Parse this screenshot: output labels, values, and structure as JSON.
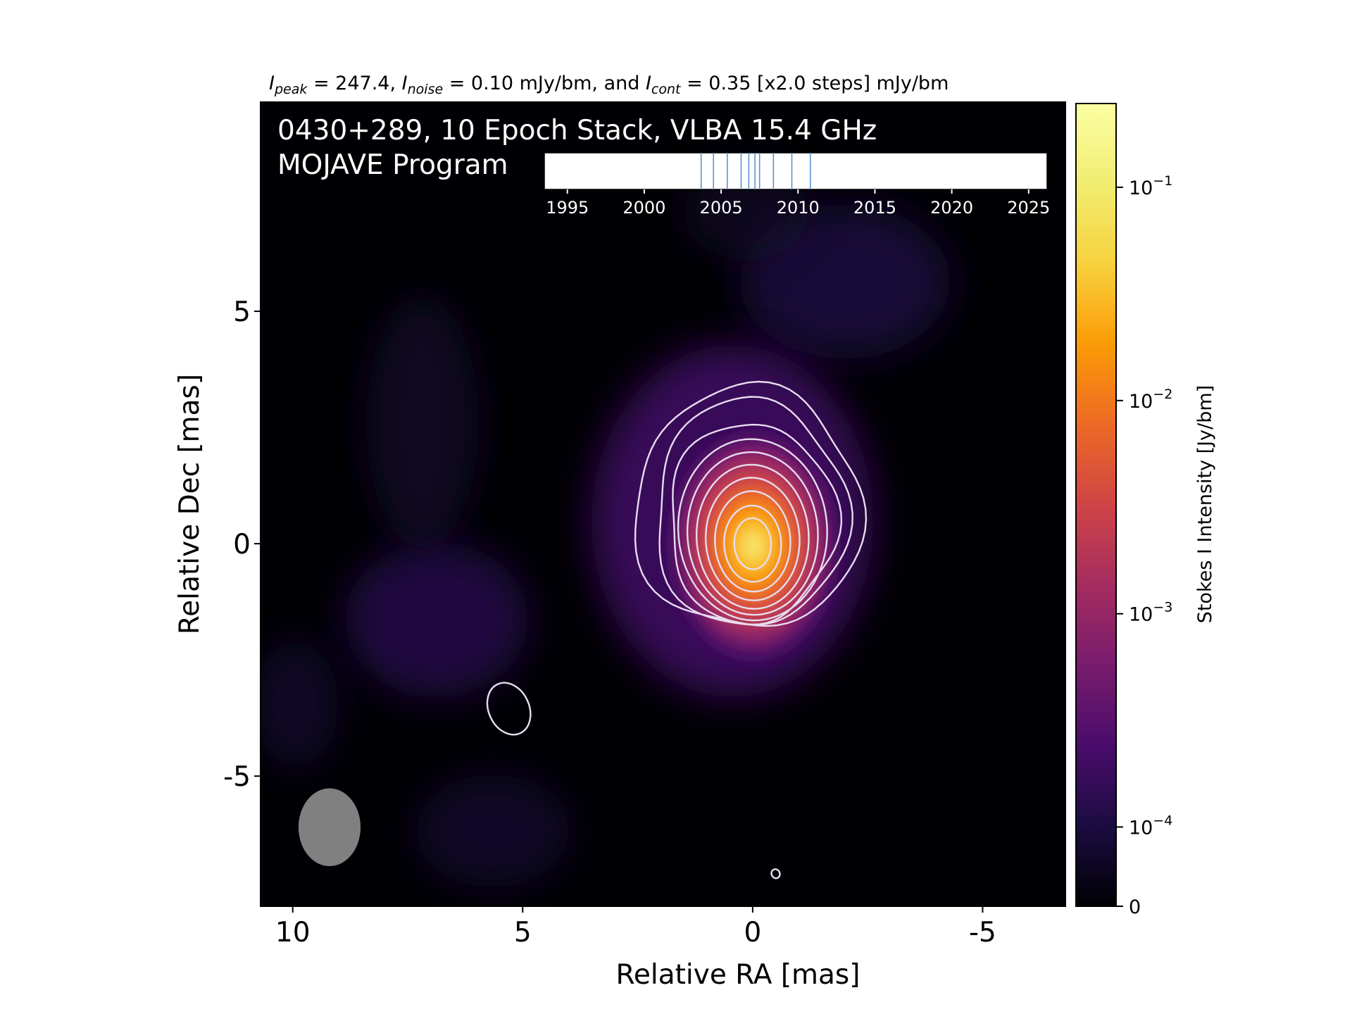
{
  "chart_data": {
    "type": "heatmap",
    "title_parts": {
      "peak_sym": "I",
      "peak_sub": "peak",
      "peak_text": " = 247.4, ",
      "noise_sym": "I",
      "noise_sub": "noise",
      "noise_text": " = 0.10 mJy/bm, and ",
      "cont_sym": "I",
      "cont_sub": "cont",
      "cont_text": " = 0.35 [x2.0 steps] mJy/bm"
    },
    "overlay_line1": "0430+289, 10 Epoch Stack, VLBA 15.4 GHz",
    "overlay_line2": "MOJAVE Program",
    "xlabel": "Relative RA [mas]",
    "ylabel": "Relative Dec [mas]",
    "xlim": [
      10.7,
      -6.8
    ],
    "ylim": [
      -7.8,
      9.5
    ],
    "x_ticks": [
      "10",
      "5",
      "0",
      "-5"
    ],
    "y_ticks": [
      "5",
      "0",
      "-5"
    ],
    "source": {
      "peak_x": 0,
      "peak_y": 0,
      "peak_jy_per_beam": 0.2474
    },
    "contour_base_mjy": 0.35,
    "contour_step_factor": 2.0,
    "contours": [
      {
        "level": 1,
        "x0": 0.1,
        "y0": 0.75,
        "sx": 2.48,
        "sy": 2.6
      },
      {
        "level": 2,
        "x0": 0.05,
        "y0": 0.65,
        "sx": 2.08,
        "sy": 2.45
      },
      {
        "level": 3,
        "x0": 0.02,
        "y0": 0.45,
        "sx": 1.82,
        "sy": 2.15
      },
      {
        "level": 4,
        "x0": 0.0,
        "y0": 0.3,
        "sx": 1.62,
        "sy": 1.95
      },
      {
        "level": 5,
        "x0": 0.0,
        "y0": 0.22,
        "sx": 1.42,
        "sy": 1.75
      },
      {
        "level": 6,
        "x0": 0.0,
        "y0": 0.15,
        "sx": 1.22,
        "sy": 1.55
      },
      {
        "level": 7,
        "x0": 0.0,
        "y0": 0.1,
        "sx": 1.02,
        "sy": 1.32
      },
      {
        "level": 8,
        "x0": 0.0,
        "y0": 0.05,
        "sx": 0.82,
        "sy": 1.08
      },
      {
        "level": 9,
        "x0": 0.0,
        "y0": 0.0,
        "sx": 0.62,
        "sy": 0.82
      },
      {
        "level": 10,
        "x0": 0.0,
        "y0": 0.0,
        "sx": 0.4,
        "sy": 0.55
      }
    ],
    "extra_contours": [
      {
        "x": 5.3,
        "y": -3.55,
        "sx": 0.44,
        "sy": 0.58
      },
      {
        "x": -0.5,
        "y": -7.1,
        "sx": 0.09,
        "sy": 0.1
      }
    ],
    "beam": {
      "x": 9.2,
      "y": -6.1,
      "major_mas": 1.55,
      "minor_mas": 1.25
    },
    "colorbar": {
      "label": "Stokes I Intensity [Jy/bm]",
      "cmap": "inferno",
      "scale": "log",
      "tick_labels": [
        {
          "base": "10",
          "exp": "−1"
        },
        {
          "base": "10",
          "exp": "−2"
        },
        {
          "base": "10",
          "exp": "−3"
        },
        {
          "base": "10",
          "exp": "−4"
        },
        {
          "base": "0",
          "exp": ""
        }
      ],
      "tick_values": [
        0.1,
        0.01,
        0.001,
        0.0001,
        0
      ]
    },
    "epoch_timeline": {
      "xlim": [
        1993.5,
        2026.2
      ],
      "tick_labels": [
        "1995",
        "2000",
        "2005",
        "2010",
        "2015",
        "2020",
        "2025"
      ],
      "epochs": [
        2003.7,
        2004.5,
        2005.4,
        2006.3,
        2006.8,
        2007.2,
        2007.5,
        2008.4,
        2009.6,
        2010.8
      ],
      "line_color": "#4f8fcf"
    },
    "colors": {
      "background": "#000004",
      "contour": "#e7dcf0",
      "beam": "#808080"
    }
  }
}
